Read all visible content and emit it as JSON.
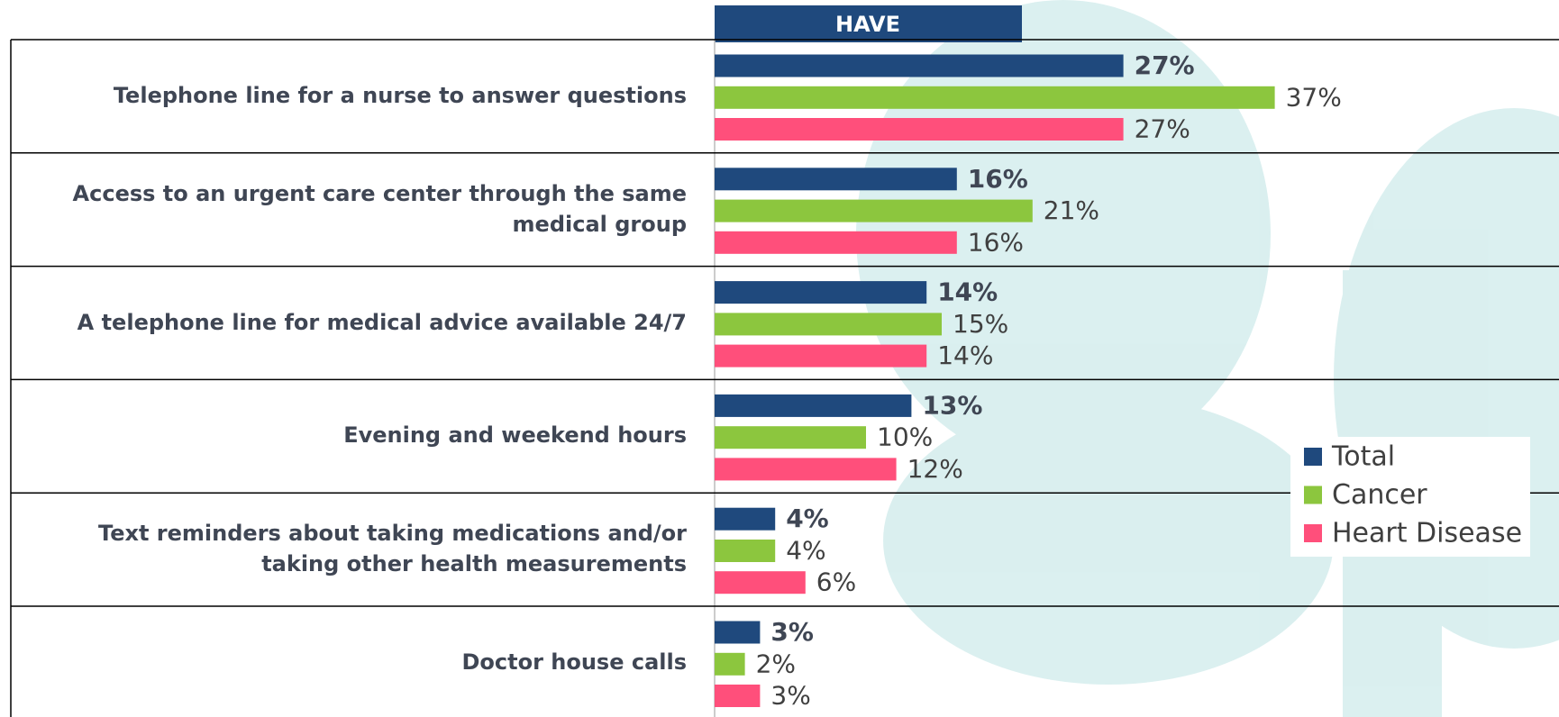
{
  "chart_data": {
    "type": "bar",
    "orientation": "horizontal",
    "header": "HAVE",
    "categories": [
      "Telephone line for a nurse to answer questions",
      "Access to an urgent care center through the same medical group",
      "A telephone line for medical advice available 24/7",
      "Evening and weekend hours",
      "Text reminders about taking medications and/or taking other health measurements",
      "Doctor house calls"
    ],
    "series": [
      {
        "name": "Total",
        "color": "#1f497d",
        "values": [
          27,
          16,
          14,
          13,
          4,
          3
        ],
        "value_labels": [
          "27%",
          "16%",
          "14%",
          "13%",
          "4%",
          "3%"
        ]
      },
      {
        "name": "Cancer",
        "color": "#8cc63e",
        "values": [
          37,
          21,
          15,
          10,
          4,
          2
        ],
        "value_labels": [
          "37%",
          "21%",
          "15%",
          "10%",
          "4%",
          "2%"
        ]
      },
      {
        "name": "Heart Disease",
        "color": "#ff4f7b",
        "values": [
          27,
          16,
          14,
          12,
          6,
          3
        ],
        "value_labels": [
          "27%",
          "16%",
          "14%",
          "12%",
          "6%",
          "3%"
        ]
      }
    ],
    "legend": "right"
  }
}
